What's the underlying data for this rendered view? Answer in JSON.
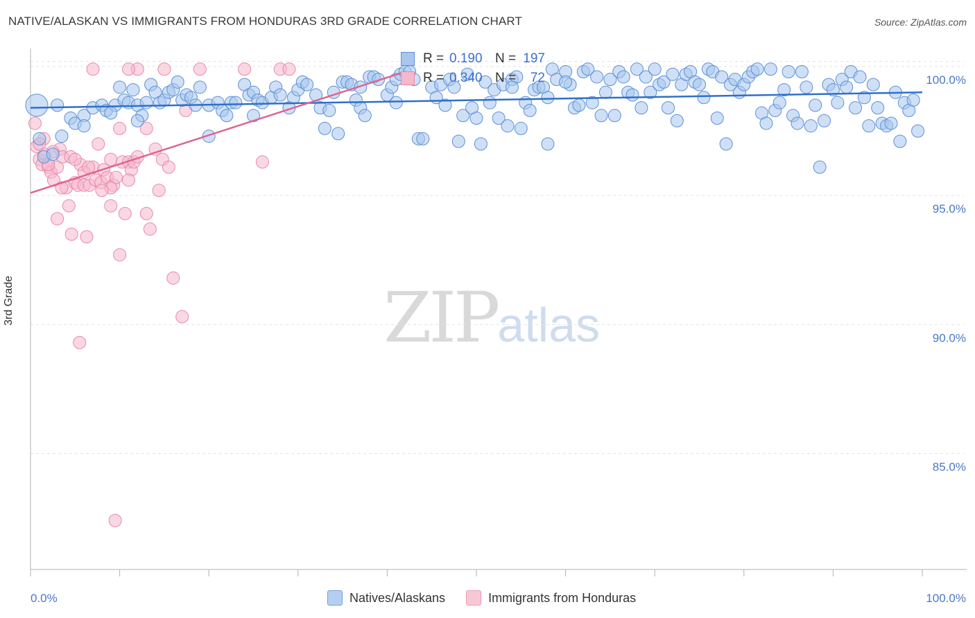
{
  "title": "NATIVE/ALASKAN VS IMMIGRANTS FROM HONDURAS 3RD GRADE CORRELATION CHART",
  "source": "Source: ZipAtlas.com",
  "watermark_zip": "ZIP",
  "watermark_atlas": "atlas",
  "legend_top": [
    {
      "r_label": "R =",
      "r_value": "0.190",
      "n_label": "N =",
      "n_value": "197"
    },
    {
      "r_label": "R =",
      "r_value": "0.340",
      "n_label": "N =",
      "n_value": "72"
    }
  ],
  "legend_bottom": [
    "Natives/Alaskans",
    "Immigrants from Honduras"
  ],
  "colors": {
    "blue_fill": "#a8c6ee",
    "blue_stroke": "#5b8fd6",
    "blue_line": "#2f6fc9",
    "pink_fill": "#f5b8cc",
    "pink_stroke": "#e889a8",
    "pink_line": "#e0648f",
    "grid": "#e3e3e3",
    "axis": "#b0b0b0"
  },
  "chart_data": {
    "type": "scatter",
    "title": "NATIVE/ALASKAN VS IMMIGRANTS FROM HONDURAS 3RD GRADE CORRELATION CHART",
    "xlabel": "",
    "ylabel": "3rd Grade",
    "xlim": [
      0,
      100
    ],
    "ylim": [
      80.5,
      100.7
    ],
    "x_tick_labels": [
      "0.0%",
      "100.0%"
    ],
    "y_ticks": [
      100,
      95,
      90,
      85
    ],
    "y_tick_labels": [
      "100.0%",
      "95.0%",
      "90.0%",
      "85.0%"
    ],
    "grid": true,
    "series": [
      {
        "name": "Natives/Alaskans",
        "r": 0.19,
        "n": 197,
        "trend": {
          "x": [
            0,
            100
          ],
          "y": [
            98.4,
            99.0
          ]
        },
        "points": [
          [
            0.7,
            98.5
          ],
          [
            1,
            97.2
          ],
          [
            1.5,
            96.5
          ],
          [
            2.5,
            96.6
          ],
          [
            3.5,
            97.3
          ],
          [
            4.5,
            98
          ],
          [
            5,
            97.8
          ],
          [
            6,
            98.1
          ],
          [
            6,
            97.7
          ],
          [
            7,
            98.4
          ],
          [
            8,
            98.5
          ],
          [
            8.5,
            98.3
          ],
          [
            9.5,
            98.5
          ],
          [
            10,
            99.2
          ],
          [
            10.5,
            98.7
          ],
          [
            11,
            98.6
          ],
          [
            11.5,
            99.1
          ],
          [
            12,
            98.5
          ],
          [
            12.5,
            98.1
          ],
          [
            13,
            98.6
          ],
          [
            13.5,
            99.3
          ],
          [
            14,
            99
          ],
          [
            14.5,
            98.6
          ],
          [
            15,
            98.7
          ],
          [
            15.5,
            99
          ],
          [
            16,
            99.1
          ],
          [
            16.5,
            99.4
          ],
          [
            17,
            98.7
          ],
          [
            17.5,
            98.9
          ],
          [
            18,
            98.8
          ],
          [
            18.5,
            98.5
          ],
          [
            19,
            99.2
          ],
          [
            20,
            98.5
          ],
          [
            20,
            97.3
          ],
          [
            21,
            98.6
          ],
          [
            21.5,
            98.3
          ],
          [
            22,
            98.1
          ],
          [
            22.5,
            98.6
          ],
          [
            23,
            98.6
          ],
          [
            24,
            99.3
          ],
          [
            24.5,
            98.9
          ],
          [
            25,
            99
          ],
          [
            25.5,
            98.7
          ],
          [
            26,
            98.6
          ],
          [
            27,
            98.8
          ],
          [
            27.5,
            99.2
          ],
          [
            28,
            98.9
          ],
          [
            29,
            98.4
          ],
          [
            29.5,
            98.8
          ],
          [
            30,
            99.1
          ],
          [
            30.5,
            99.4
          ],
          [
            31,
            99.3
          ],
          [
            32,
            98.9
          ],
          [
            32.5,
            98.4
          ],
          [
            33,
            97.6
          ],
          [
            33.5,
            98.3
          ],
          [
            34,
            99
          ],
          [
            34.5,
            97.4
          ],
          [
            35,
            99.4
          ],
          [
            35.5,
            99.4
          ],
          [
            36,
            99.3
          ],
          [
            36.5,
            98.7
          ],
          [
            37,
            98.4
          ],
          [
            37.5,
            98.1
          ],
          [
            38,
            99.6
          ],
          [
            38.5,
            99.6
          ],
          [
            39,
            99.5
          ],
          [
            40,
            98.9
          ],
          [
            40.5,
            99.2
          ],
          [
            41,
            99.5
          ],
          [
            41.5,
            99.7
          ],
          [
            42,
            99.8
          ],
          [
            42.5,
            99.8
          ],
          [
            43,
            99.5
          ],
          [
            43.5,
            97.2
          ],
          [
            44,
            97.2
          ],
          [
            45,
            99.2
          ],
          [
            45.5,
            98.8
          ],
          [
            46,
            99.3
          ],
          [
            47,
            99.5
          ],
          [
            47.5,
            99.2
          ],
          [
            48,
            97.1
          ],
          [
            48.5,
            98.1
          ],
          [
            49,
            99.7
          ],
          [
            49.5,
            98.4
          ],
          [
            50,
            98
          ],
          [
            50.5,
            97
          ],
          [
            51,
            99.4
          ],
          [
            51.5,
            98.6
          ],
          [
            52,
            99.1
          ],
          [
            52.5,
            98
          ],
          [
            53,
            99.3
          ],
          [
            53.5,
            97.7
          ],
          [
            54,
            99.5
          ],
          [
            54.5,
            99.6
          ],
          [
            55,
            97.6
          ],
          [
            55.5,
            98.6
          ],
          [
            56,
            98.3
          ],
          [
            56.5,
            99.1
          ],
          [
            57,
            99.2
          ],
          [
            57.5,
            99.2
          ],
          [
            58,
            97
          ],
          [
            58.5,
            99.9
          ],
          [
            59,
            99.5
          ],
          [
            60,
            99.8
          ],
          [
            60.5,
            99.3
          ],
          [
            61,
            98.4
          ],
          [
            61.5,
            98.5
          ],
          [
            62,
            99.8
          ],
          [
            62.5,
            99.9
          ],
          [
            63,
            98.6
          ],
          [
            63.5,
            99.6
          ],
          [
            64,
            98.1
          ],
          [
            64.5,
            99
          ],
          [
            65,
            99.5
          ],
          [
            65.5,
            98.1
          ],
          [
            66,
            99.8
          ],
          [
            66.5,
            99.6
          ],
          [
            67,
            99
          ],
          [
            67.5,
            98.9
          ],
          [
            68,
            99.9
          ],
          [
            68.5,
            98.4
          ],
          [
            69,
            99.6
          ],
          [
            69.5,
            99
          ],
          [
            70,
            99.9
          ],
          [
            70.5,
            99.3
          ],
          [
            71,
            99.4
          ],
          [
            71.5,
            98.4
          ],
          [
            72,
            99.7
          ],
          [
            72.5,
            97.9
          ],
          [
            73,
            99.3
          ],
          [
            73.5,
            99.7
          ],
          [
            74,
            99.8
          ],
          [
            74.5,
            99.4
          ],
          [
            75,
            99.3
          ],
          [
            75.5,
            98.8
          ],
          [
            76,
            99.9
          ],
          [
            76.5,
            99.8
          ],
          [
            77,
            98
          ],
          [
            77.5,
            99.6
          ],
          [
            78,
            97
          ],
          [
            78.5,
            99.3
          ],
          [
            79,
            99.5
          ],
          [
            79.5,
            99
          ],
          [
            80,
            99.3
          ],
          [
            80.5,
            99.6
          ],
          [
            81,
            99.8
          ],
          [
            81.5,
            99.9
          ],
          [
            82,
            98.2
          ],
          [
            82.5,
            97.8
          ],
          [
            83,
            99.9
          ],
          [
            83.5,
            98.3
          ],
          [
            84,
            98.6
          ],
          [
            84.5,
            99.1
          ],
          [
            85,
            99.8
          ],
          [
            85.5,
            98.1
          ],
          [
            86,
            97.8
          ],
          [
            86.5,
            99.8
          ],
          [
            87,
            99.2
          ],
          [
            87.5,
            97.7
          ],
          [
            88,
            98.5
          ],
          [
            88.5,
            96.1
          ],
          [
            89,
            97.9
          ],
          [
            89.5,
            99.3
          ],
          [
            90,
            99.1
          ],
          [
            90.5,
            98.6
          ],
          [
            91,
            99.5
          ],
          [
            91.5,
            99.2
          ],
          [
            92,
            99.8
          ],
          [
            92.5,
            98.4
          ],
          [
            93,
            99.6
          ],
          [
            93.5,
            98.8
          ],
          [
            94,
            97.7
          ],
          [
            94.5,
            99.3
          ],
          [
            95,
            98.4
          ],
          [
            95.5,
            97.8
          ],
          [
            96,
            97.7
          ],
          [
            96.5,
            97.8
          ],
          [
            97,
            99
          ],
          [
            97.5,
            97.1
          ],
          [
            98,
            98.6
          ],
          [
            98.5,
            98.3
          ],
          [
            99,
            98.7
          ],
          [
            99.5,
            97.5
          ],
          [
            60,
            99.4
          ],
          [
            58,
            98.8
          ],
          [
            54,
            99.2
          ],
          [
            46.5,
            98.5
          ],
          [
            41,
            98.6
          ],
          [
            37,
            99.2
          ],
          [
            25,
            98.1
          ],
          [
            12,
            97.9
          ],
          [
            9,
            98.2
          ],
          [
            3,
            98.5
          ]
        ]
      },
      {
        "name": "Immigrants from Honduras",
        "r": 0.34,
        "n": 72,
        "trend": {
          "x": [
            0,
            42
          ],
          "y": [
            95.1,
            99.8
          ]
        },
        "points": [
          [
            0.5,
            97.8
          ],
          [
            0.7,
            96.9
          ],
          [
            1,
            96.4
          ],
          [
            1.3,
            96.2
          ],
          [
            1.6,
            96.6
          ],
          [
            2,
            96.1
          ],
          [
            2.3,
            95.9
          ],
          [
            2.6,
            95.6
          ],
          [
            3,
            96.1
          ],
          [
            3.3,
            96.8
          ],
          [
            3.6,
            96.5
          ],
          [
            4,
            95.3
          ],
          [
            4.3,
            94.6
          ],
          [
            4.6,
            93.5
          ],
          [
            5,
            95.5
          ],
          [
            5.3,
            95.4
          ],
          [
            5.6,
            96.2
          ],
          [
            6,
            95.4
          ],
          [
            6.3,
            93.4
          ],
          [
            6.6,
            95.4
          ],
          [
            7,
            96.1
          ],
          [
            7.3,
            95.6
          ],
          [
            7.6,
            97
          ],
          [
            7.9,
            95.5
          ],
          [
            8.2,
            96
          ],
          [
            8.6,
            95.7
          ],
          [
            9,
            96.4
          ],
          [
            9.3,
            95.4
          ],
          [
            9.6,
            95.7
          ],
          [
            10,
            97.6
          ],
          [
            10.3,
            96.3
          ],
          [
            10.6,
            94.3
          ],
          [
            11,
            96.3
          ],
          [
            11.3,
            96
          ],
          [
            11.6,
            96.3
          ],
          [
            12,
            99.9
          ],
          [
            13,
            94.3
          ],
          [
            13.4,
            93.7
          ],
          [
            14,
            96.8
          ],
          [
            14.4,
            95.2
          ],
          [
            14.8,
            96.4
          ],
          [
            15,
            99.9
          ],
          [
            16,
            91.8
          ],
          [
            17,
            90.3
          ],
          [
            17.4,
            98.3
          ],
          [
            19,
            99.9
          ],
          [
            24,
            99.9
          ],
          [
            26,
            96.3
          ],
          [
            28,
            99.9
          ],
          [
            29,
            99.9
          ],
          [
            9,
            95.3
          ],
          [
            10,
            92.7
          ],
          [
            5.5,
            89.3
          ],
          [
            9.5,
            82.4
          ],
          [
            3,
            94.1
          ],
          [
            7,
            99.9
          ],
          [
            11,
            99.9
          ],
          [
            2,
            96.2
          ],
          [
            1.5,
            97.2
          ],
          [
            4.5,
            96.5
          ],
          [
            6,
            95.9
          ],
          [
            8,
            95.2
          ],
          [
            12,
            96.5
          ],
          [
            13,
            97.6
          ],
          [
            5,
            96.4
          ],
          [
            3.5,
            95.3
          ],
          [
            2.5,
            96.7
          ],
          [
            1,
            97
          ],
          [
            9,
            94.6
          ],
          [
            11,
            95.6
          ],
          [
            6.5,
            96.1
          ],
          [
            15.5,
            96.1
          ]
        ]
      }
    ]
  }
}
